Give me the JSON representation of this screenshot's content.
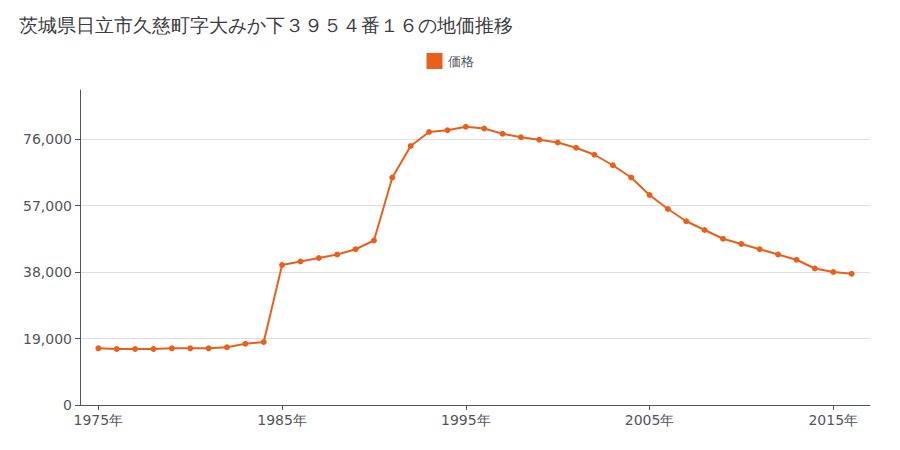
{
  "chart_data": {
    "type": "line",
    "title": "茨城県日立市久慈町字大みか下３９５４番１６の地価推移",
    "x": [
      1975,
      1976,
      1977,
      1978,
      1979,
      1980,
      1981,
      1982,
      1983,
      1984,
      1985,
      1986,
      1987,
      1988,
      1989,
      1990,
      1991,
      1992,
      1993,
      1994,
      1995,
      1996,
      1997,
      1998,
      1999,
      2000,
      2001,
      2002,
      2003,
      2004,
      2005,
      2006,
      2007,
      2008,
      2009,
      2010,
      2011,
      2012,
      2013,
      2014,
      2015,
      2016
    ],
    "series": [
      {
        "name": "価格",
        "color": "#e8601c",
        "marker": "circle",
        "values": [
          16200,
          16000,
          16000,
          16000,
          16200,
          16200,
          16200,
          16500,
          17500,
          18000,
          40000,
          41000,
          42000,
          43000,
          44500,
          47000,
          65000,
          74000,
          78000,
          78500,
          79500,
          79000,
          77500,
          76500,
          75800,
          75000,
          73500,
          71500,
          68500,
          65000,
          60000,
          56000,
          52500,
          50000,
          47500,
          46000,
          44500,
          43000,
          41500,
          39000,
          38000,
          37500
        ]
      }
    ],
    "xlim": [
      1974,
      2017
    ],
    "xticks": [
      {
        "value": 1975,
        "label": "1975年"
      },
      {
        "value": 1985,
        "label": "1985年"
      },
      {
        "value": 1995,
        "label": "1995年"
      },
      {
        "value": 2005,
        "label": "2005年"
      },
      {
        "value": 2015,
        "label": "2015年"
      }
    ],
    "ylim": [
      0,
      90000
    ],
    "yticks": [
      0,
      {
        "value": 19000,
        "label": "19,000"
      },
      {
        "value": 38000,
        "label": "38,000"
      },
      {
        "value": 57000,
        "label": "57,000"
      },
      {
        "value": 76000,
        "label": "76,000"
      }
    ],
    "grid": true,
    "legend": "top"
  }
}
